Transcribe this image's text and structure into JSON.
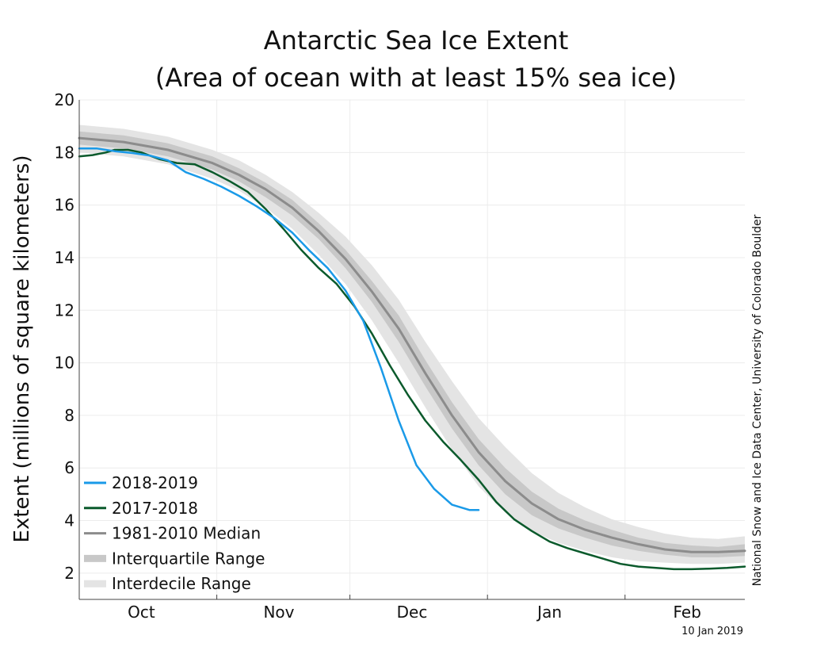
{
  "chart_data": {
    "type": "line",
    "title_line1": "Antarctic Sea Ice Extent",
    "title_line2": "(Area of ocean with at least 15% sea ice)",
    "ylabel": "Extent (millions of square kilometers)",
    "xlabel": "",
    "ylim": [
      1,
      20
    ],
    "xlim": [
      0,
      150
    ],
    "yticks": [
      2,
      4,
      6,
      8,
      10,
      12,
      14,
      16,
      18,
      20
    ],
    "month_labels": [
      {
        "label": "Oct",
        "x": 14
      },
      {
        "label": "Nov",
        "x": 45
      },
      {
        "label": "Dec",
        "x": 75
      },
      {
        "label": "Jan",
        "x": 106
      },
      {
        "label": "Feb",
        "x": 137
      }
    ],
    "month_boundaries": [
      31,
      61,
      92,
      123
    ],
    "credit": "National Snow and Ice Data Center, University of Colorado Boulder",
    "date_stamp": "10 Jan 2019",
    "grid": true,
    "legend_position": "bottom-left",
    "legend": [
      {
        "label": "2018-2019",
        "color": "#1a9ae8",
        "style": "line"
      },
      {
        "label": "2017-2018",
        "color": "#0b5a2c",
        "style": "line"
      },
      {
        "label": "1981-2010 Median",
        "color": "#8c8c8c",
        "style": "line"
      },
      {
        "label": "Interquartile Range",
        "color": "#c8c8c8",
        "style": "band"
      },
      {
        "label": "Interdecile Range",
        "color": "#e4e4e4",
        "style": "band"
      }
    ],
    "series": [
      {
        "name": "2018-2019",
        "color": "#1a9ae8",
        "x": [
          0,
          4,
          8,
          12,
          16,
          20,
          24,
          28,
          32,
          36,
          40,
          44,
          48,
          52,
          56,
          60,
          64,
          68,
          72,
          76,
          80,
          84,
          88,
          90
        ],
        "values": [
          18.15,
          18.15,
          18.05,
          17.98,
          17.88,
          17.7,
          17.25,
          17.0,
          16.7,
          16.35,
          15.95,
          15.5,
          14.95,
          14.25,
          13.6,
          12.75,
          11.6,
          9.8,
          7.8,
          6.1,
          5.2,
          4.6,
          4.4,
          4.4
        ]
      },
      {
        "name": "2017-2018",
        "color": "#0b5a2c",
        "x": [
          0,
          3,
          6,
          8,
          11,
          14,
          18,
          22,
          26,
          30,
          34,
          38,
          42,
          46,
          50,
          54,
          58,
          62,
          66,
          70,
          74,
          78,
          82,
          86,
          90,
          94,
          98,
          102,
          106,
          110,
          114,
          118,
          122,
          126,
          130,
          134,
          138,
          142,
          146,
          150
        ],
        "values": [
          17.85,
          17.9,
          18.0,
          18.1,
          18.1,
          18.0,
          17.75,
          17.6,
          17.55,
          17.25,
          16.9,
          16.5,
          15.85,
          15.1,
          14.3,
          13.6,
          13.0,
          12.15,
          11.1,
          9.9,
          8.8,
          7.8,
          7.0,
          6.3,
          5.55,
          4.7,
          4.05,
          3.6,
          3.2,
          2.95,
          2.75,
          2.55,
          2.35,
          2.25,
          2.2,
          2.15,
          2.15,
          2.17,
          2.2,
          2.25
        ]
      },
      {
        "name": "1981-2010 Median",
        "color": "#8c8c8c",
        "x": [
          0,
          10,
          20,
          30,
          36,
          42,
          48,
          54,
          60,
          66,
          72,
          78,
          84,
          90,
          96,
          102,
          108,
          114,
          120,
          126,
          132,
          138,
          144,
          150
        ],
        "values": [
          18.55,
          18.4,
          18.1,
          17.6,
          17.15,
          16.6,
          15.9,
          15.0,
          13.95,
          12.7,
          11.3,
          9.6,
          8.0,
          6.6,
          5.5,
          4.65,
          4.05,
          3.65,
          3.35,
          3.1,
          2.9,
          2.8,
          2.8,
          2.85
        ]
      }
    ],
    "interquartile": {
      "x": [
        0,
        10,
        20,
        30,
        36,
        42,
        48,
        54,
        60,
        66,
        72,
        78,
        84,
        90,
        96,
        102,
        108,
        114,
        120,
        126,
        132,
        138,
        144,
        150
      ],
      "upper": [
        18.8,
        18.65,
        18.35,
        17.85,
        17.4,
        16.85,
        16.2,
        15.3,
        14.3,
        13.1,
        11.8,
        10.1,
        8.5,
        7.1,
        6.0,
        5.1,
        4.45,
        4.0,
        3.65,
        3.35,
        3.15,
        3.05,
        3.0,
        3.1
      ],
      "lower": [
        18.3,
        18.15,
        17.85,
        17.35,
        16.9,
        16.3,
        15.6,
        14.7,
        13.6,
        12.3,
        10.8,
        9.1,
        7.5,
        6.1,
        5.0,
        4.2,
        3.7,
        3.35,
        3.05,
        2.85,
        2.7,
        2.6,
        2.6,
        2.65
      ]
    },
    "interdecile": {
      "x": [
        0,
        10,
        20,
        30,
        36,
        42,
        48,
        54,
        60,
        66,
        72,
        78,
        84,
        90,
        96,
        102,
        108,
        114,
        120,
        126,
        132,
        138,
        144,
        150
      ],
      "upper": [
        19.05,
        18.9,
        18.6,
        18.1,
        17.7,
        17.15,
        16.5,
        15.7,
        14.8,
        13.7,
        12.4,
        10.8,
        9.3,
        7.9,
        6.8,
        5.8,
        5.05,
        4.5,
        4.05,
        3.75,
        3.5,
        3.35,
        3.3,
        3.4
      ],
      "lower": [
        18.0,
        17.85,
        17.55,
        17.0,
        16.55,
        15.9,
        15.1,
        14.1,
        13.0,
        11.6,
        10.0,
        8.3,
        6.7,
        5.3,
        4.3,
        3.6,
        3.15,
        2.85,
        2.6,
        2.45,
        2.4,
        2.35,
        2.35,
        2.4
      ]
    }
  }
}
